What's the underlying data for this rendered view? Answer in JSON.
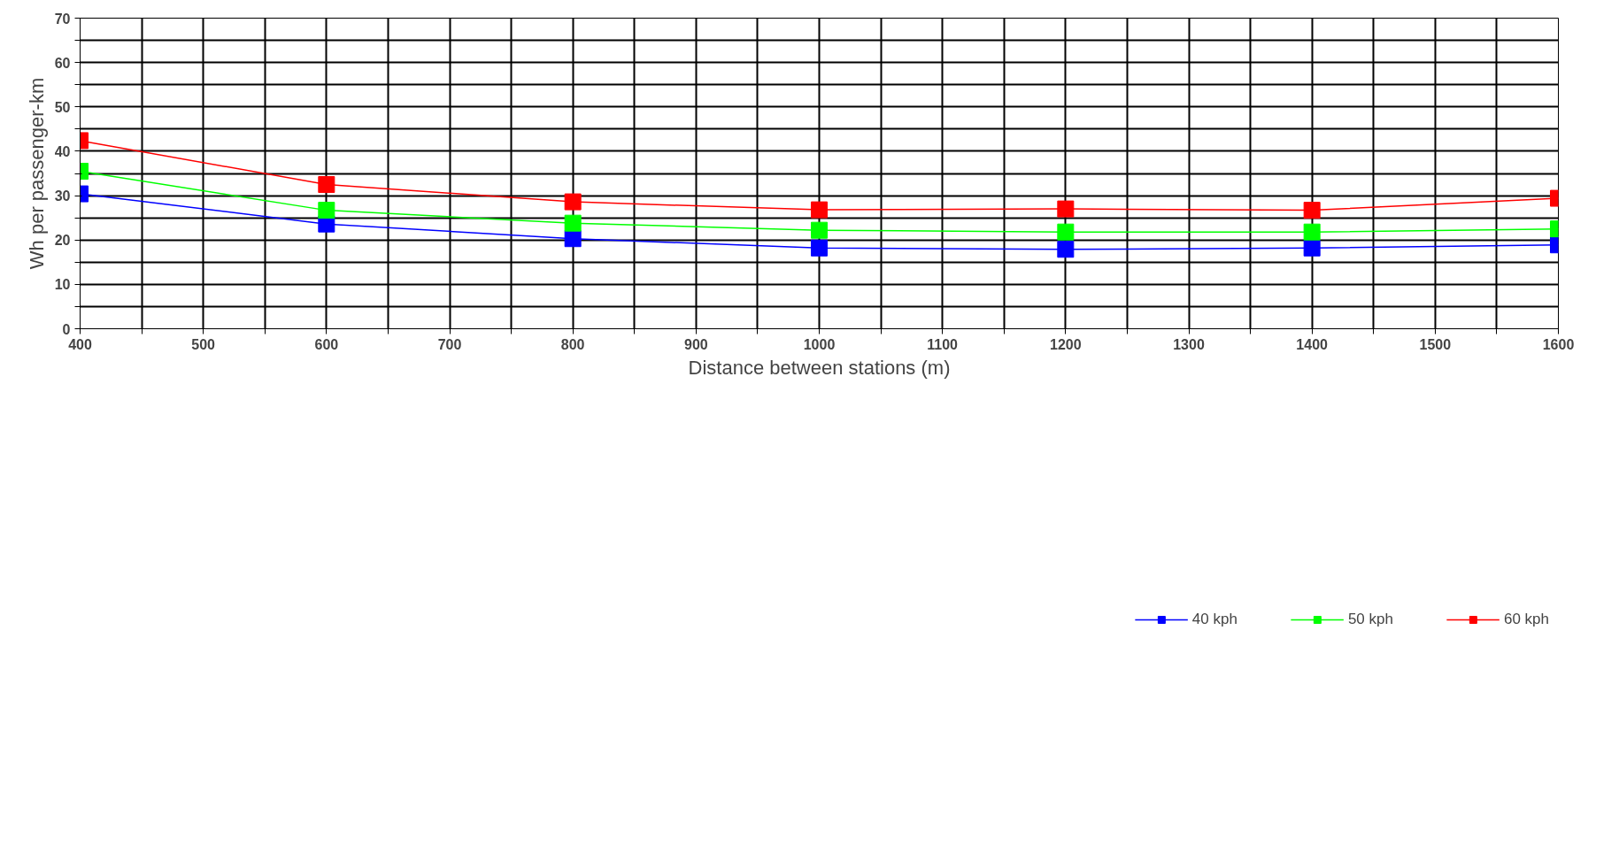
{
  "chart_data": {
    "type": "line",
    "xlabel": "Distance between stations (m)",
    "ylabel": "Wh per passenger-km",
    "x": [
      400,
      600,
      800,
      1000,
      1200,
      1400,
      1600
    ],
    "series": [
      {
        "name": "40 kph",
        "color": "#0000ff",
        "values": [
          30.4,
          23.6,
          20.3,
          18.2,
          17.9,
          18.2,
          18.9
        ]
      },
      {
        "name": "50 kph",
        "color": "#00ff00",
        "values": [
          35.5,
          26.7,
          23.8,
          22.2,
          21.8,
          21.8,
          22.5
        ]
      },
      {
        "name": "60 kph",
        "color": "#ff0000",
        "values": [
          42.4,
          32.5,
          28.6,
          26.8,
          27.0,
          26.7,
          29.4
        ]
      }
    ],
    "xlim": [
      400,
      1600
    ],
    "xticks": [
      400,
      {
        "value": 450,
        "label": null
      },
      500,
      {
        "value": 550,
        "label": null
      },
      600,
      {
        "value": 650,
        "label": null
      },
      700,
      {
        "value": 750,
        "label": null
      },
      800,
      {
        "value": 850,
        "label": null
      },
      900,
      {
        "value": 950,
        "label": null
      },
      1000,
      {
        "value": 1050,
        "label": null
      },
      1100,
      {
        "value": 1150,
        "label": null
      },
      1200,
      {
        "value": 1250,
        "label": null
      },
      1300,
      {
        "value": 1350,
        "label": null
      },
      1400,
      {
        "value": 1450,
        "label": null
      },
      1500,
      {
        "value": 1550,
        "label": null
      },
      1600
    ],
    "ylim": [
      0,
      70
    ],
    "yticks": [
      0,
      {
        "value": 5,
        "label": null
      },
      10,
      {
        "value": 15,
        "label": null
      },
      20,
      {
        "value": 25,
        "label": null
      },
      30,
      {
        "value": 35,
        "label": null
      },
      40,
      {
        "value": 45,
        "label": null
      },
      50,
      {
        "value": 55,
        "label": null
      },
      60,
      {
        "value": 65,
        "label": null
      },
      70
    ],
    "grid": true,
    "legend": "bottom",
    "marker": "square",
    "line_style": "solid"
  }
}
